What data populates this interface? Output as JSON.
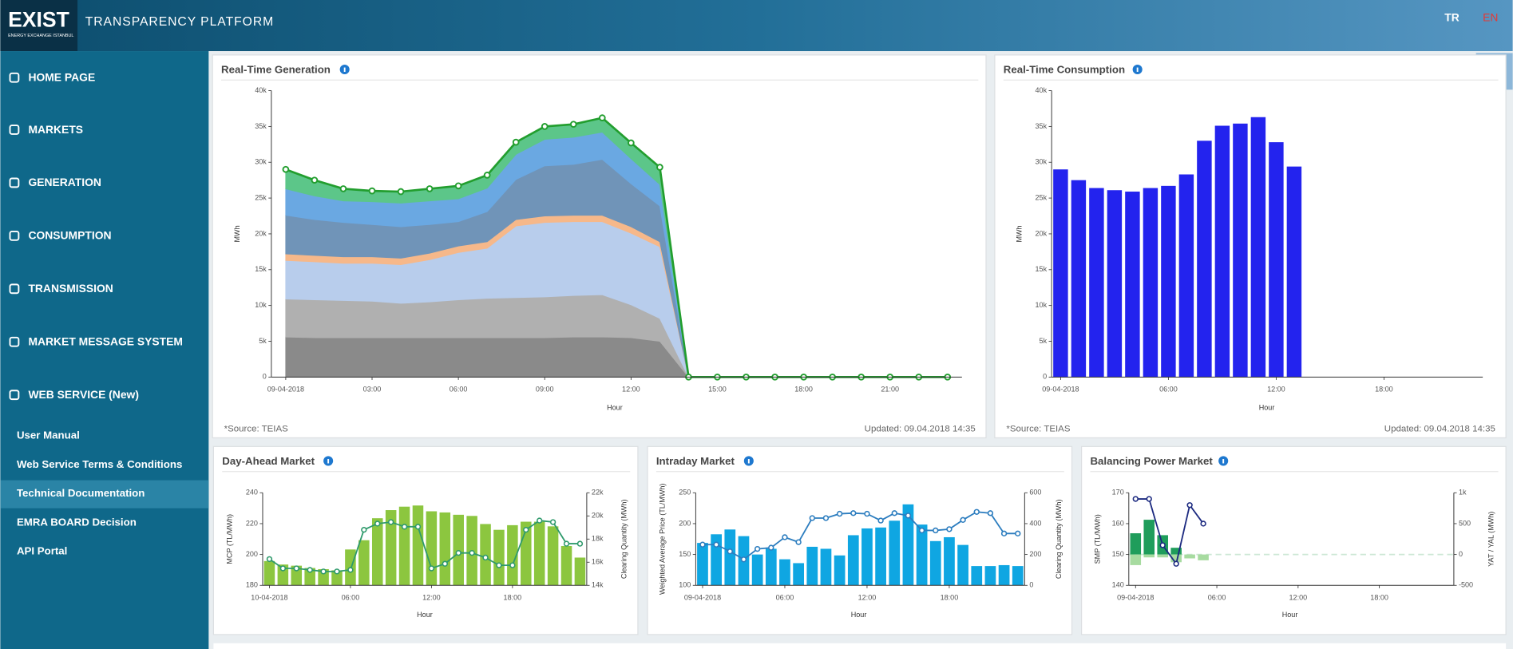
{
  "header": {
    "logo": "EXIST",
    "logo_subtitle": "ENERGY EXCHANGE ISTANBUL",
    "title": "TRANSPARENCY PLATFORM",
    "languages": [
      "TR",
      "EN"
    ]
  },
  "sidebar": {
    "menu": [
      "HOME PAGE",
      "MARKETS",
      "GENERATION",
      "CONSUMPTION",
      "TRANSMISSION",
      "MARKET MESSAGE SYSTEM",
      "WEB SERVICE (New)"
    ],
    "submenu": [
      "User Manual",
      "Web Service Terms & Conditions",
      "Technical Documentation",
      "EMRA BOARD Decision",
      "API Portal"
    ],
    "active_submenu": 2
  },
  "chart_data": [
    {
      "type": "area",
      "title": "Real-Time Generation",
      "ylabel": "MWh",
      "xlabel": "Hour",
      "source": "*Source: TEIAS",
      "updated": "Updated: 09.04.2018 14:35",
      "categories": [
        "09-04-2018",
        null,
        null,
        "03:00",
        null,
        null,
        "06:00",
        null,
        null,
        "09:00",
        null,
        null,
        "12:00",
        null,
        null,
        "15:00",
        null,
        null,
        "18:00",
        null,
        null,
        "21:00",
        null,
        null
      ],
      "series": [
        {
          "color": "#8a8a8a",
          "values": [
            5600,
            5500,
            5500,
            5500,
            5500,
            5500,
            5500,
            5500,
            5500,
            5500,
            5600,
            5600,
            5500,
            5000,
            0,
            0,
            0,
            0,
            0,
            0,
            0,
            0,
            0,
            0
          ]
        },
        {
          "color": "#b0b0b0",
          "values": [
            5300,
            5300,
            5200,
            5100,
            4800,
            5000,
            5300,
            5500,
            5600,
            5700,
            5800,
            5900,
            4600,
            3200,
            0,
            0,
            0,
            0,
            0,
            0,
            0,
            0,
            0,
            0
          ]
        },
        {
          "color": "#b8cdec",
          "values": [
            5400,
            5300,
            5200,
            5300,
            5400,
            5900,
            6600,
            7000,
            10000,
            10400,
            10300,
            10200,
            10000,
            10000,
            0,
            0,
            0,
            0,
            0,
            0,
            0,
            0,
            0,
            0
          ]
        },
        {
          "color": "#f6b88a",
          "values": [
            900,
            900,
            900,
            900,
            900,
            900,
            900,
            900,
            900,
            900,
            900,
            900,
            900,
            700,
            0,
            0,
            0,
            0,
            0,
            0,
            0,
            0,
            0,
            0
          ]
        },
        {
          "color": "#7094b8",
          "values": [
            5400,
            5000,
            4800,
            4500,
            4400,
            4000,
            3400,
            4200,
            5600,
            7000,
            7100,
            7800,
            6000,
            5000,
            0,
            0,
            0,
            0,
            0,
            0,
            0,
            0,
            0,
            0
          ]
        },
        {
          "color": "#6aa8e2",
          "values": [
            3700,
            3300,
            3000,
            3200,
            3300,
            3300,
            3200,
            3300,
            3500,
            3700,
            3800,
            3800,
            3500,
            3000,
            0,
            0,
            0,
            0,
            0,
            0,
            0,
            0,
            0,
            0
          ]
        },
        {
          "color": "#5cc689",
          "values": [
            2700,
            2200,
            1700,
            1500,
            1600,
            1700,
            1800,
            1800,
            1700,
            1800,
            1800,
            2000,
            2200,
            2400,
            0,
            0,
            0,
            0,
            0,
            0,
            0,
            0,
            0,
            0
          ]
        }
      ],
      "line_color": "#229e2e",
      "ylim": [
        0,
        40000
      ],
      "yticks": [
        0,
        {
          "value": 5000,
          "label": "5k"
        },
        {
          "value": 10000,
          "label": "10k"
        },
        {
          "value": 15000,
          "label": "15k"
        },
        {
          "value": 20000,
          "label": "20k"
        },
        {
          "value": 25000,
          "label": "25k"
        },
        {
          "value": 30000,
          "label": "30k"
        },
        {
          "value": 35000,
          "label": "35k"
        },
        {
          "value": 40000,
          "label": "40k"
        }
      ]
    },
    {
      "type": "bar",
      "title": "Real-Time Consumption",
      "ylabel": "MWh",
      "xlabel": "Hour",
      "source": "*Source: TEIAS",
      "updated": "Updated: 09.04.2018 14:35",
      "categories": [
        "09-04-2018",
        null,
        null,
        null,
        null,
        null,
        "06:00",
        null,
        null,
        null,
        null,
        null,
        "12:00",
        null,
        null,
        null,
        null,
        null,
        "18:00",
        null,
        null,
        null,
        null,
        null
      ],
      "values": [
        29000,
        27500,
        26400,
        26100,
        25900,
        26400,
        26700,
        28300,
        33000,
        35100,
        35400,
        36300,
        32800,
        29400,
        null,
        null,
        null,
        null,
        null,
        null,
        null,
        null,
        null,
        null
      ],
      "color": "#2323ee",
      "ylim": [
        0,
        40000
      ],
      "yticks": [
        0,
        {
          "value": 5000,
          "label": "5k"
        },
        {
          "value": 10000,
          "label": "10k"
        },
        {
          "value": 15000,
          "label": "15k"
        },
        {
          "value": 20000,
          "label": "20k"
        },
        {
          "value": 25000,
          "label": "25k"
        },
        {
          "value": 30000,
          "label": "30k"
        },
        {
          "value": 35000,
          "label": "35k"
        },
        {
          "value": 40000,
          "label": "40k"
        }
      ]
    },
    {
      "type": "combo",
      "title": "Day-Ahead Market",
      "ylabel": "MCP (TL/MWh)",
      "y2label": "Clearing Quantity (MWh)",
      "xlabel": "Hour",
      "categories": [
        "10-04-2018",
        null,
        null,
        null,
        null,
        null,
        "06:00",
        null,
        null,
        null,
        null,
        null,
        "12:00",
        null,
        null,
        null,
        null,
        null,
        "18:00",
        null,
        null,
        null,
        null,
        null
      ],
      "series": [
        {
          "type": "bar",
          "axis": "y2",
          "color": "#8cc63f",
          "values": [
            16100,
            15800,
            15700,
            15500,
            15400,
            15300,
            17100,
            17900,
            19800,
            20500,
            20800,
            20900,
            20400,
            20300,
            20100,
            20000,
            19300,
            18800,
            19200,
            19500,
            19500,
            19100,
            17400,
            16400
          ]
        },
        {
          "type": "line",
          "color": "#2f9a6c",
          "values": [
            197,
            191,
            191,
            190,
            189,
            189,
            190,
            216,
            220,
            221,
            218,
            218,
            191,
            194,
            201,
            201,
            198,
            193,
            193,
            216,
            222,
            221,
            207,
            207
          ]
        }
      ],
      "ylim": [
        180,
        240
      ],
      "yticks": [
        180,
        200,
        220,
        240
      ],
      "y2lim": [
        14000,
        22000
      ],
      "y2ticks": [
        {
          "value": 14000,
          "label": "14k"
        },
        {
          "value": 16000,
          "label": "16k"
        },
        {
          "value": 18000,
          "label": "18k"
        },
        {
          "value": 20000,
          "label": "20k"
        },
        {
          "value": 22000,
          "label": "22k"
        }
      ]
    },
    {
      "type": "combo",
      "title": "Intraday Market",
      "ylabel": "Weighted Average Price (TL/MWh)",
      "y2label": "Clearing Quantity (MWh)",
      "xlabel": "Hour",
      "categories": [
        "09-04-2018",
        null,
        null,
        null,
        null,
        null,
        "06:00",
        null,
        null,
        null,
        null,
        null,
        "12:00",
        null,
        null,
        null,
        null,
        null,
        "18:00",
        null,
        null,
        null,
        null,
        null
      ],
      "series": [
        {
          "type": "bar",
          "axis": "y2",
          "color": "#0fa6e2",
          "values": [
            275,
            331,
            362,
            319,
            200,
            237,
            169,
            144,
            250,
            237,
            194,
            325,
            369,
            375,
            419,
            525,
            394,
            287,
            312,
            262,
            125,
            125,
            131,
            125
          ]
        },
        {
          "type": "line",
          "color": "#2c7dbf",
          "values": [
            166,
            166,
            155,
            142,
            159,
            161,
            178,
            170,
            209,
            209,
            216,
            217,
            216,
            205,
            217,
            213,
            189,
            189,
            191,
            206,
            219,
            217,
            184,
            184
          ]
        }
      ],
      "ylim": [
        100,
        250
      ],
      "yticks": [
        100,
        150,
        200,
        250
      ],
      "y2lim": [
        0,
        600
      ],
      "y2ticks": [
        0,
        200,
        400,
        600
      ]
    },
    {
      "type": "combo",
      "title": "Balancing Power Market",
      "ylabel": "SMP (TL/MWh)",
      "y2label": "YAT / YAL (MWh)",
      "xlabel": "Hour",
      "categories": [
        "09-04-2018",
        null,
        null,
        null,
        null,
        null,
        "06:00",
        null,
        null,
        null,
        null,
        null,
        "12:00",
        null,
        null,
        null,
        null,
        null,
        "18:00",
        null,
        null,
        null,
        null,
        null
      ],
      "series": [
        {
          "type": "bar",
          "axis": "y2",
          "color": "#1f9d5b",
          "values": [
            344,
            563,
            313,
            109,
            0,
            0,
            null,
            null,
            null,
            null,
            null,
            null,
            null,
            null,
            null,
            null,
            null,
            null,
            null,
            null,
            null,
            null,
            null,
            null
          ]
        },
        {
          "type": "bar",
          "axis": "y2",
          "color": "#a7dba0",
          "values": [
            -172,
            -47,
            -47,
            -125,
            -63,
            -94,
            null,
            null,
            null,
            null,
            null,
            null,
            null,
            null,
            null,
            null,
            null,
            null,
            null,
            null,
            null,
            null,
            null,
            null
          ]
        },
        {
          "type": "line",
          "color": "#1c2a80",
          "values": [
            168,
            168,
            153,
            147,
            166,
            160,
            null,
            null,
            null,
            null,
            null,
            null,
            null,
            null,
            null,
            null,
            null,
            null,
            null,
            null,
            null,
            null,
            null,
            null
          ]
        }
      ],
      "zero_line": true,
      "ylim": [
        140,
        170
      ],
      "yticks": [
        140,
        150,
        160,
        170
      ],
      "y2lim": [
        -500,
        1000
      ],
      "y2ticks": [
        -500,
        0,
        500,
        {
          "value": 1000,
          "label": "1k"
        }
      ]
    }
  ]
}
